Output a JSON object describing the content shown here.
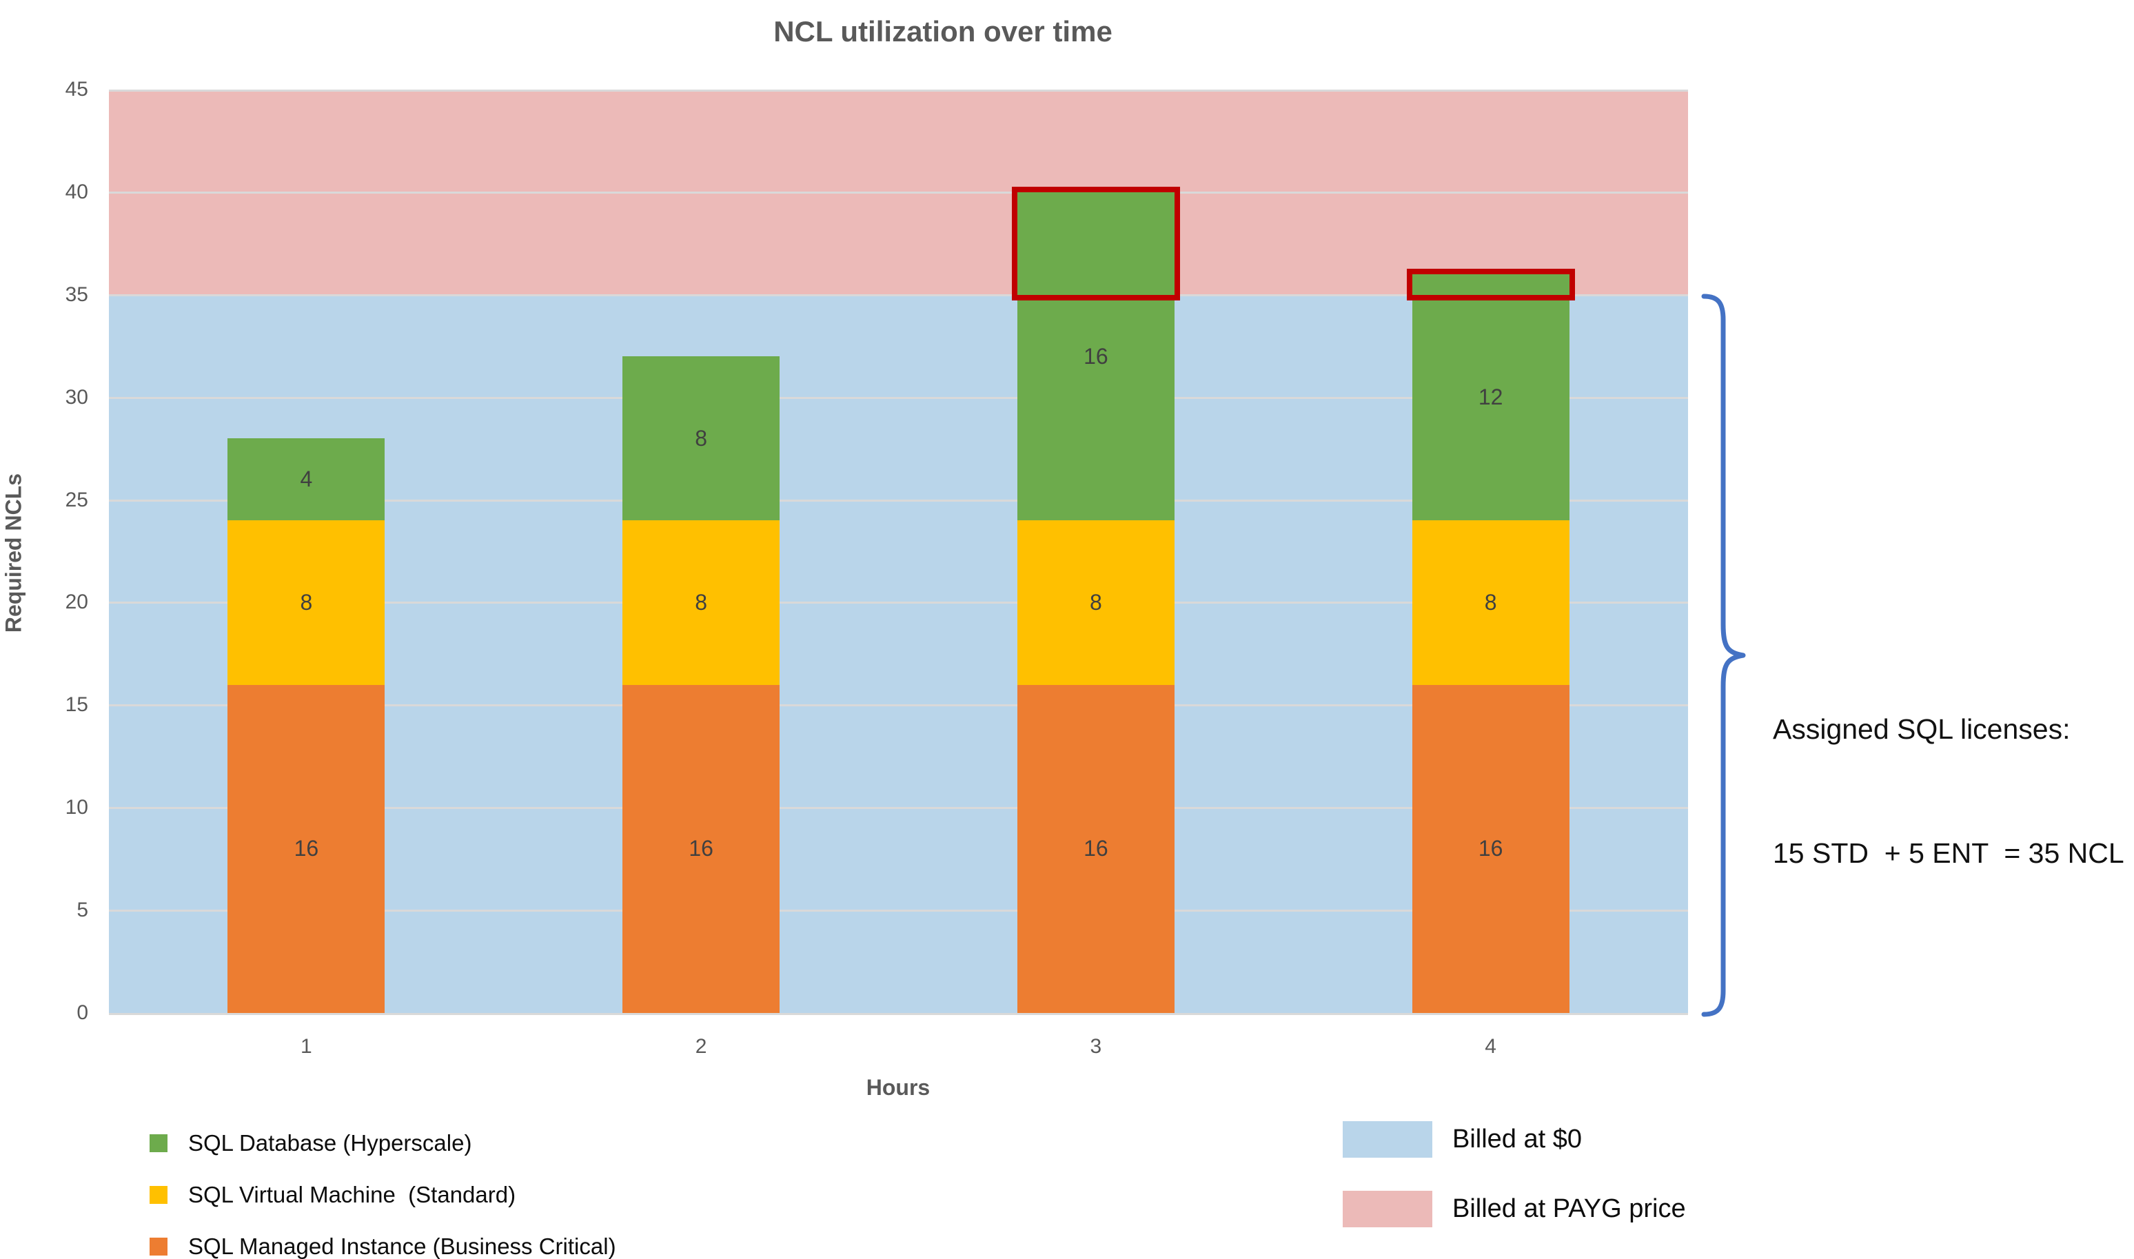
{
  "title": "NCL utilization over time",
  "chart_data": {
    "type": "bar",
    "stacked": true,
    "title": "NCL utilization over time",
    "xlabel": "Hours",
    "ylabel": "Required NCLs",
    "ylim": [
      0,
      45
    ],
    "ytick_step": 5,
    "grid": true,
    "categories": [
      "1",
      "2",
      "3",
      "4"
    ],
    "series": [
      {
        "name": "SQL Managed Instance (Business Critical)",
        "color": "#ED7D31",
        "values": [
          16,
          16,
          16,
          16
        ]
      },
      {
        "name": "SQL Virtual Machine  (Standard)",
        "color": "#FFC000",
        "values": [
          8,
          8,
          8,
          8
        ]
      },
      {
        "name": "SQL Database (Hyperscale)",
        "color": "#6DAB4C",
        "values": [
          4,
          8,
          16,
          12
        ]
      }
    ],
    "totals": [
      28,
      32,
      40,
      36
    ],
    "background_bands": [
      {
        "label": "Billed at $0",
        "from": 0,
        "to": 35,
        "color": "#B9D5EA"
      },
      {
        "label": "Billed at PAYG price",
        "from": 35,
        "to": 45,
        "color": "#ECBAB8"
      }
    ],
    "license_cap": 35,
    "overflow_highlights": [
      {
        "category_index": 2,
        "from": 35,
        "to": 40
      },
      {
        "category_index": 3,
        "from": 35,
        "to": 36
      }
    ],
    "overflow_color": "#C00000",
    "gridline_color": "#D9D9D9"
  },
  "legend_series": {
    "items": [
      {
        "label": "SQL Database (Hyperscale)",
        "color": "#6DAB4C"
      },
      {
        "label": "SQL Virtual Machine  (Standard)",
        "color": "#FFC000"
      },
      {
        "label": "SQL Managed Instance (Business Critical)",
        "color": "#ED7D31"
      }
    ]
  },
  "legend_bands": {
    "items": [
      {
        "label": "Billed at $0",
        "color": "#B9D5EA"
      },
      {
        "label": "Billed at PAYG price",
        "color": "#ECBAB8"
      }
    ]
  },
  "annotation": {
    "line1": "Assigned SQL licenses:",
    "line2": "15 STD  + 5 ENT  = 35 NCL",
    "brace_color": "#4472C4"
  }
}
